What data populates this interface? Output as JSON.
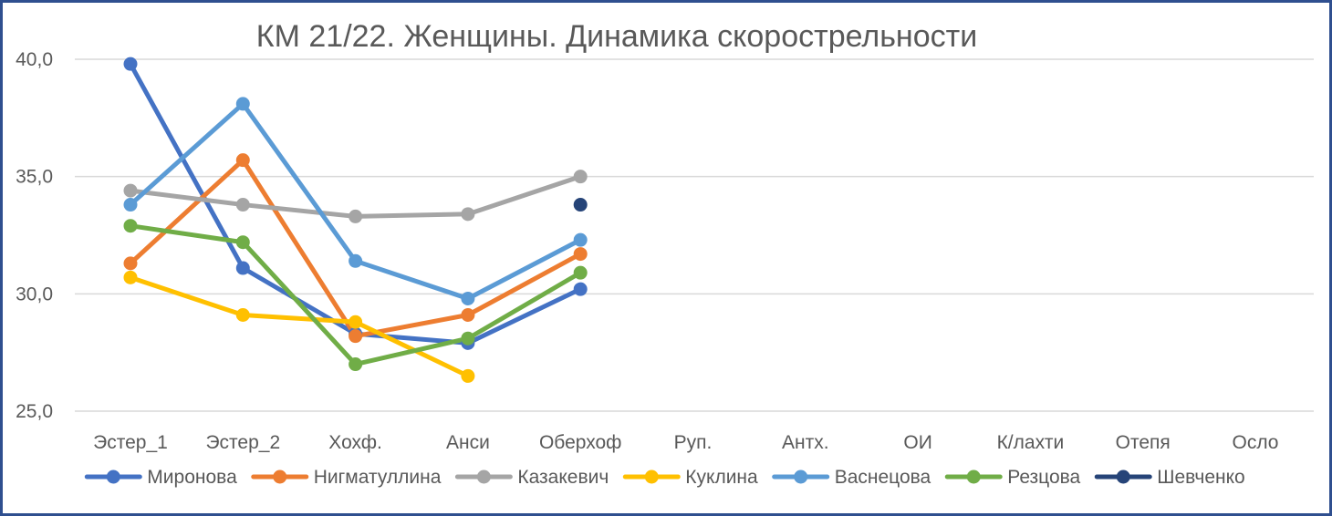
{
  "chart_data": {
    "type": "line",
    "title": "КМ 21/22. Женщины. Динамика скорострельности",
    "xlabel": "",
    "ylabel": "",
    "categories": [
      "Эстер_1",
      "Эстер_2",
      "Хохф.",
      "Анси",
      "Оберхоф",
      "Руп.",
      "Антх.",
      "ОИ",
      "К/лахти",
      "Отепя",
      "Осло"
    ],
    "yticks": [
      "25,0",
      "30,0",
      "35,0",
      "40,0"
    ],
    "ytick_values": [
      25,
      30,
      35,
      40
    ],
    "ylim": [
      25,
      40
    ],
    "grid": true,
    "legend_position": "bottom",
    "series": [
      {
        "name": "Миронова",
        "color": "#4472c4",
        "values": [
          39.8,
          31.1,
          28.3,
          27.9,
          30.2,
          null,
          null,
          null,
          null,
          null,
          null
        ]
      },
      {
        "name": "Нигматуллина",
        "color": "#ed7d31",
        "values": [
          31.3,
          35.7,
          28.2,
          29.1,
          31.7,
          null,
          null,
          null,
          null,
          null,
          null
        ]
      },
      {
        "name": "Казакевич",
        "color": "#a5a5a5",
        "values": [
          34.4,
          33.8,
          33.3,
          33.4,
          35.0,
          null,
          null,
          null,
          null,
          null,
          null
        ]
      },
      {
        "name": "Куклина",
        "color": "#ffc000",
        "values": [
          30.7,
          29.1,
          28.8,
          26.5,
          null,
          null,
          null,
          null,
          null,
          null,
          null
        ]
      },
      {
        "name": "Васнецова",
        "color": "#5b9bd5",
        "values": [
          33.8,
          38.1,
          31.4,
          29.8,
          32.3,
          null,
          null,
          null,
          null,
          null,
          null
        ]
      },
      {
        "name": "Резцова",
        "color": "#70ad47",
        "values": [
          32.9,
          32.2,
          27.0,
          28.1,
          30.9,
          null,
          null,
          null,
          null,
          null,
          null
        ]
      },
      {
        "name": "Шевченко",
        "color": "#264478",
        "values": [
          null,
          null,
          null,
          null,
          33.8,
          null,
          null,
          null,
          null,
          null,
          null
        ]
      }
    ]
  }
}
